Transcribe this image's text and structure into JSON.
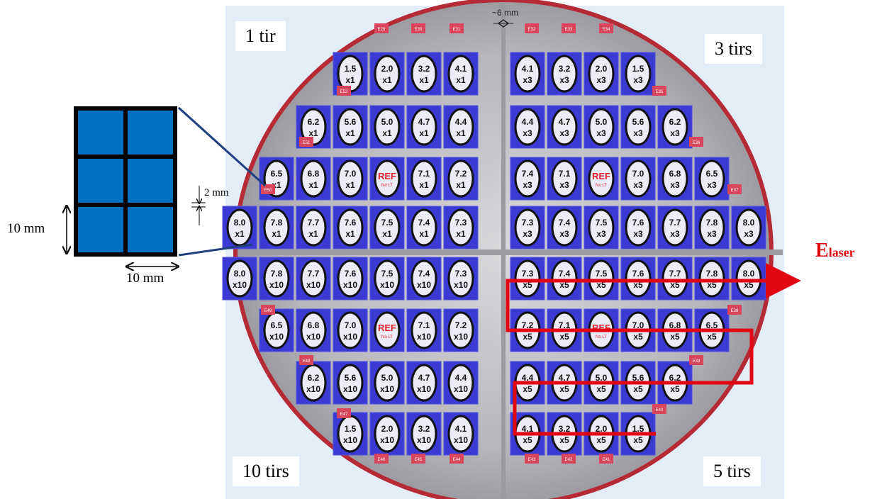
{
  "quadrants": {
    "top_left": "1 tir",
    "top_right": "3 tirs",
    "bottom_left": "10 tirs",
    "bottom_right": "5 tirs"
  },
  "wafer": {
    "spacing_label": "~6 mm",
    "ref_label": "REF",
    "ref_sub": "No LT",
    "rows": [
      {
        "left": [
          "1.5",
          "2.0",
          "3.2",
          "4.1"
        ],
        "right": [
          "4.1",
          "3.2",
          "2.0",
          "1.5"
        ],
        "lmult": "x1",
        "rmult": "x3"
      },
      {
        "left": [
          "6.2",
          "5.6",
          "5.0",
          "4.7",
          "4.4"
        ],
        "right": [
          "4.4",
          "4.7",
          "5.0",
          "5.6",
          "6.2"
        ],
        "lmult": "x1",
        "rmult": "x3"
      },
      {
        "left": [
          "6.5",
          "6.8",
          "7.0",
          "REF",
          "7.1",
          "7.2"
        ],
        "right": [
          "7.4",
          "7.1",
          "REF",
          "7.0",
          "6.8",
          "6.5"
        ],
        "lmult": "x1",
        "rmult": "x3"
      },
      {
        "left": [
          "8.0",
          "7.8",
          "7.7",
          "7.6",
          "7.5",
          "7.4",
          "7.3"
        ],
        "right": [
          "7.3",
          "7.4",
          "7.5",
          "7.6",
          "7.7",
          "7.8",
          "8.0"
        ],
        "lmult": "x1",
        "rmult": "x3"
      },
      {
        "left": [
          "8.0",
          "7.8",
          "7.7",
          "7.6",
          "7.5",
          "7.4",
          "7.3"
        ],
        "right": [
          "7.3",
          "7.4",
          "7.5",
          "7.6",
          "7.7",
          "7.8",
          "8.0"
        ],
        "lmult": "x10",
        "rmult": "x5"
      },
      {
        "left": [
          "6.5",
          "6.8",
          "7.0",
          "REF",
          "7.1",
          "7.2"
        ],
        "right": [
          "7.2",
          "7.1",
          "REF",
          "7.0",
          "6.8",
          "6.5"
        ],
        "lmult": "x10",
        "rmult": "x5"
      },
      {
        "left": [
          "6.2",
          "5.6",
          "5.0",
          "4.7",
          "4.4"
        ],
        "right": [
          "4.4",
          "4.7",
          "5.0",
          "5.6",
          "6.2"
        ],
        "lmult": "x10",
        "rmult": "x5"
      },
      {
        "left": [
          "1.5",
          "2.0",
          "3.2",
          "4.1"
        ],
        "right": [
          "4.1",
          "3.2",
          "2.0",
          "1.5"
        ],
        "lmult": "x10",
        "rmult": "x5"
      }
    ],
    "tags": [
      "E29",
      "E30",
      "E31",
      "E32",
      "E33",
      "E34",
      "E35",
      "E36",
      "E37",
      "E38",
      "E39",
      "E40",
      "E41",
      "E42",
      "E43",
      "E44",
      "E45",
      "E46",
      "E47",
      "E48",
      "E49",
      "E50",
      "E51",
      "E52"
    ]
  },
  "inset": {
    "dim_gap": "2 mm",
    "dim_height": "10 mm",
    "dim_width": "10 mm"
  },
  "laser": {
    "label_main": "E",
    "label_sub": "laser"
  },
  "colors": {
    "die": "#2c2ccf",
    "laser_path": "#e30613",
    "inset_cell": "#0070c0",
    "tag": "#d9455a"
  }
}
